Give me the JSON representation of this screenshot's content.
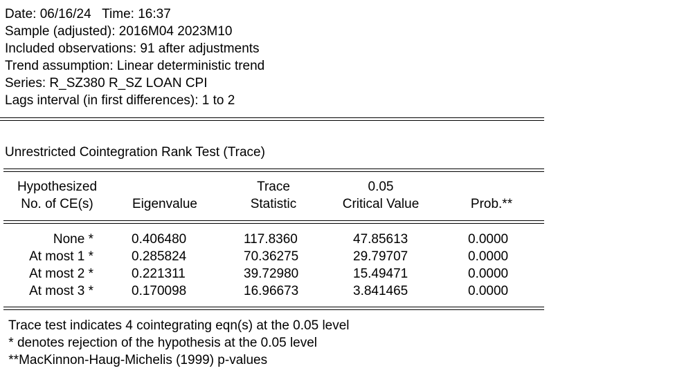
{
  "header": {
    "date_line": "Date: 06/16/24   Time: 16:37",
    "sample_line": "Sample (adjusted): 2016M04 2023M10",
    "obs_line": "Included observations: 91 after adjustments",
    "trend_line": "Trend assumption: Linear deterministic trend",
    "series_line": "Series: R_SZ380 R_SZ LOAN CPI",
    "lags_line": "Lags interval (in first differences): 1 to 2"
  },
  "test_title": "Unrestricted Cointegration Rank Test (Trace)",
  "table": {
    "headers": {
      "col1_line1": "Hypothesized",
      "col1_line2": "No. of CE(s)",
      "col2_line2": "Eigenvalue",
      "col3_line1": "Trace",
      "col3_line2": "Statistic",
      "col4_line1": "0.05",
      "col4_line2": "Critical Value",
      "col5_line2": "Prob.**"
    },
    "rows": [
      {
        "hyp": "None *",
        "eigen": "0.406480",
        "stat": "117.8360",
        "crit": "47.85613",
        "prob": "0.0000"
      },
      {
        "hyp": "At most 1 *",
        "eigen": "0.285824",
        "stat": "70.36275",
        "crit": "29.79707",
        "prob": "0.0000"
      },
      {
        "hyp": "At most 2 *",
        "eigen": "0.221311",
        "stat": "39.72980",
        "crit": "15.49471",
        "prob": "0.0000"
      },
      {
        "hyp": "At most 3 *",
        "eigen": "0.170098",
        "stat": "16.96673",
        "crit": "3.841465",
        "prob": "0.0000"
      }
    ]
  },
  "notes": {
    "line1": "Trace test indicates 4 cointegrating eqn(s) at the 0.05 level",
    "line2": " * denotes rejection of the hypothesis at the 0.05 level",
    "line3": " **MacKinnon-Haug-Michelis (1999) p-values"
  }
}
